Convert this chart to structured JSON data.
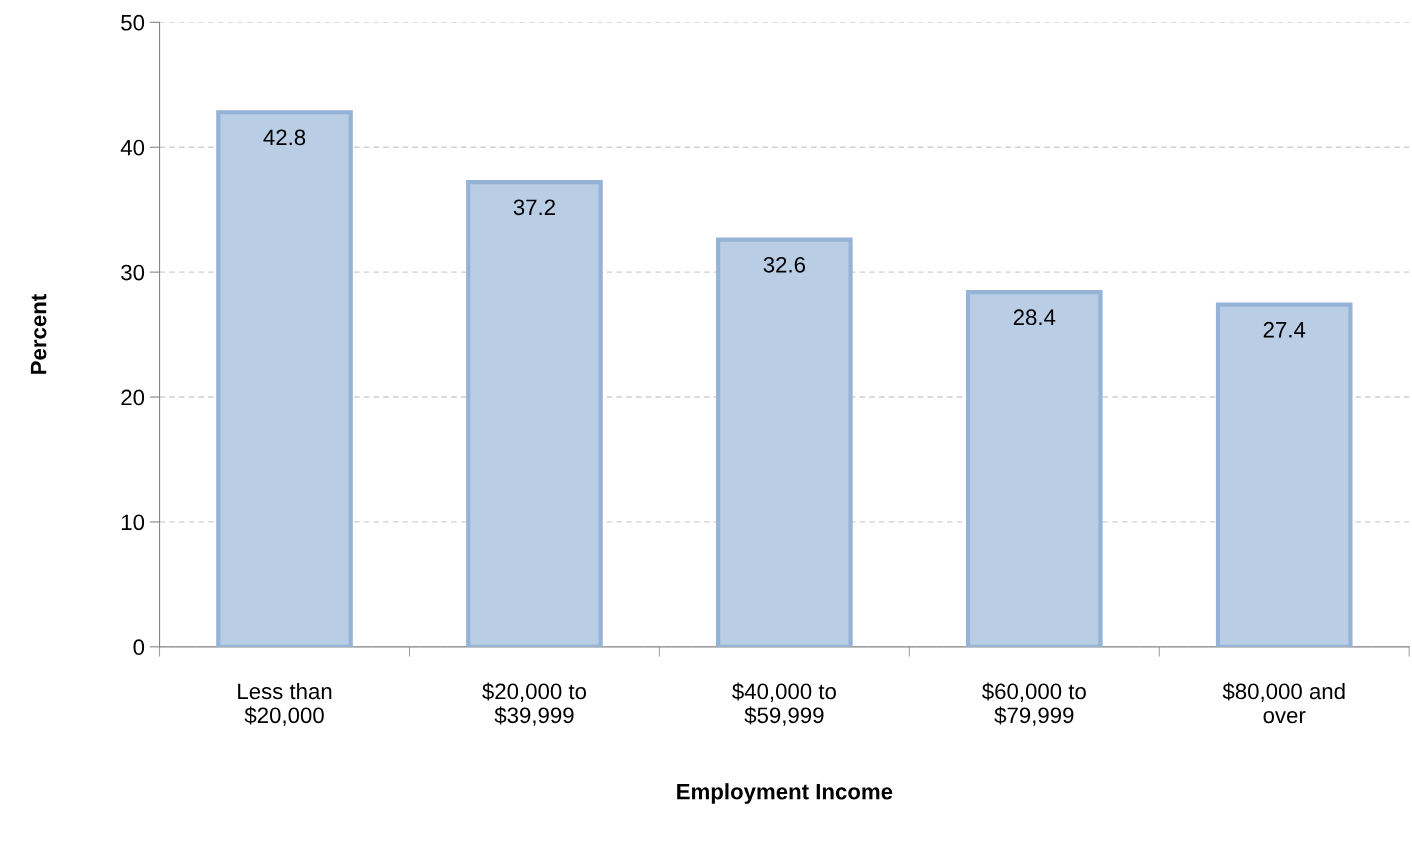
{
  "chart_data": {
    "type": "bar",
    "xlabel": "Employment Income",
    "ylabel": "Percent",
    "categories": [
      "Less than\n$20,000",
      "$20,000 to\n$39,999",
      "$40,000 to\n$59,999",
      "$60,000 to\n$79,999",
      "$80,000 and\nover"
    ],
    "values": [
      42.8,
      37.2,
      32.6,
      28.4,
      27.4
    ],
    "color": "#b9cde5",
    "ylim": [
      0,
      50
    ],
    "yticks": [
      0,
      10,
      20,
      30,
      40,
      50
    ],
    "grid": "y",
    "data_labels": true,
    "legend": false
  }
}
